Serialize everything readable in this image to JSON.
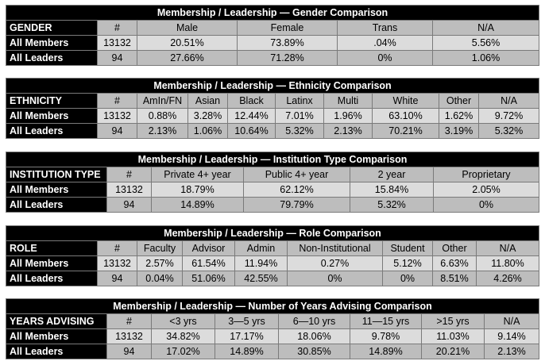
{
  "tables": {
    "gender": {
      "title": "Membership / Leadership — Gender Comparison",
      "header": [
        "GENDER",
        "#",
        "Male",
        "Female",
        "Trans",
        "N/A"
      ],
      "members": [
        "All Members",
        "13132",
        "20.51%",
        "73.89%",
        ".04%",
        "5.56%"
      ],
      "leaders": [
        "All Leaders",
        "94",
        "27.66%",
        "71.28%",
        "0%",
        "1.06%"
      ]
    },
    "ethnicity": {
      "title": "Membership / Leadership — Ethnicity Comparison",
      "header": [
        "ETHNICITY",
        "#",
        "AmIn/FN",
        "Asian",
        "Black",
        "Latinx",
        "Multi",
        "White",
        "Other",
        "N/A"
      ],
      "members": [
        "All Members",
        "13132",
        "0.88%",
        "3.28%",
        "12.44%",
        "7.01%",
        "1.96%",
        "63.10%",
        "1.62%",
        "9.72%"
      ],
      "leaders": [
        "All Leaders",
        "94",
        "2.13%",
        "1.06%",
        "10.64%",
        "5.32%",
        "2.13%",
        "70.21%",
        "3.19%",
        "5.32%"
      ]
    },
    "institution": {
      "title": "Membership / Leadership — Institution Type Comparison",
      "header": [
        "INSTITUTION TYPE",
        "#",
        "Private 4+ year",
        "Public 4+ year",
        "2 year",
        "Proprietary"
      ],
      "members": [
        "All Members",
        "13132",
        "18.79%",
        "62.12%",
        "15.84%",
        "2.05%"
      ],
      "leaders": [
        "All Leaders",
        "94",
        "14.89%",
        "79.79%",
        "5.32%",
        "0%"
      ]
    },
    "role": {
      "title": "Membership / Leadership — Role Comparison",
      "header": [
        "ROLE",
        "#",
        "Faculty",
        "Advisor",
        "Admin",
        "Non-Institutional",
        "Student",
        "Other",
        "N/A"
      ],
      "members": [
        "All Members",
        "13132",
        "2.57%",
        "61.54%",
        "11.94%",
        "0.27%",
        "5.12%",
        "6.63%",
        "11.80%"
      ],
      "leaders": [
        "All Leaders",
        "94",
        "0.04%",
        "51.06%",
        "42.55%",
        "0%",
        "0%",
        "8.51%",
        "4.26%"
      ]
    },
    "years": {
      "title": "Membership / Leadership — Number of Years Advising Comparison",
      "header": [
        "YEARS ADVISING",
        "#",
        "<3 yrs",
        "3—5 yrs",
        "6—10 yrs",
        "11—15 yrs",
        ">15 yrs",
        "N/A"
      ],
      "members": [
        "All Members",
        "13132",
        "34.82%",
        "17.17%",
        "18.06%",
        "9.78%",
        "11.03%",
        "9.14%"
      ],
      "leaders": [
        "All Leaders",
        "94",
        "17.02%",
        "14.89%",
        "30.85%",
        "14.89%",
        "20.21%",
        "2.13%"
      ]
    }
  }
}
